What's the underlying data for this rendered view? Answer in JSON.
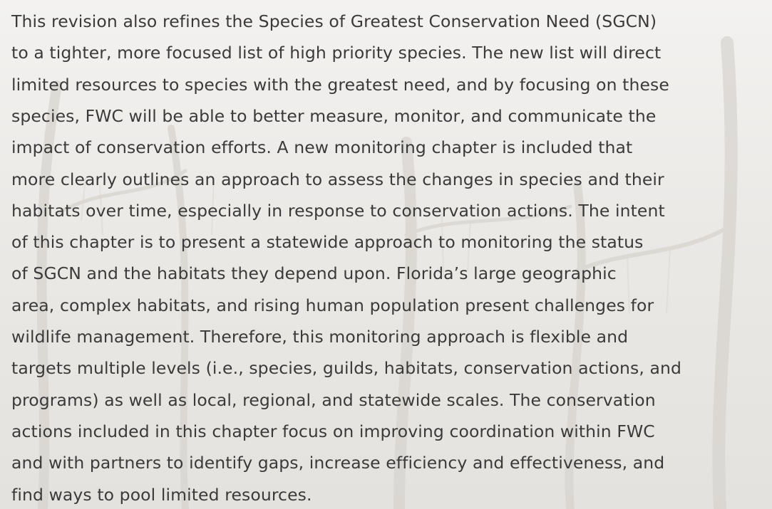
{
  "paragraph": {
    "lines": [
      "This revision also refines the Species of Greatest Conservation Need (SGCN)",
      "to a tighter, more focused list of high priority species. The new list will direct",
      "limited resources to species with the greatest need, and by focusing on these",
      "species, FWC will be able to better measure, monitor, and communicate the",
      "impact of conservation efforts. A new monitoring chapter is included that",
      "more clearly outlines an approach to assess the changes in species and their",
      "habitats over time, especially in response to conservation actions. The intent",
      "of this chapter is to present a statewide approach to monitoring the status",
      "of SGCN and the habitats they depend upon. Florida’s large geographic",
      "area, complex habitats, and rising human population present challenges for",
      "wildlife management. Therefore, this monitoring approach is flexible and",
      "targets multiple levels (i.e., species, guilds, habitats, conservation actions, and",
      "programs) as well as local, regional, and statewide scales. The conservation",
      "actions included in this chapter focus on improving coordination within FWC",
      "and with partners to identify gaps, increase efficiency and effectiveness, and",
      "find ways to pool limited resources."
    ]
  }
}
